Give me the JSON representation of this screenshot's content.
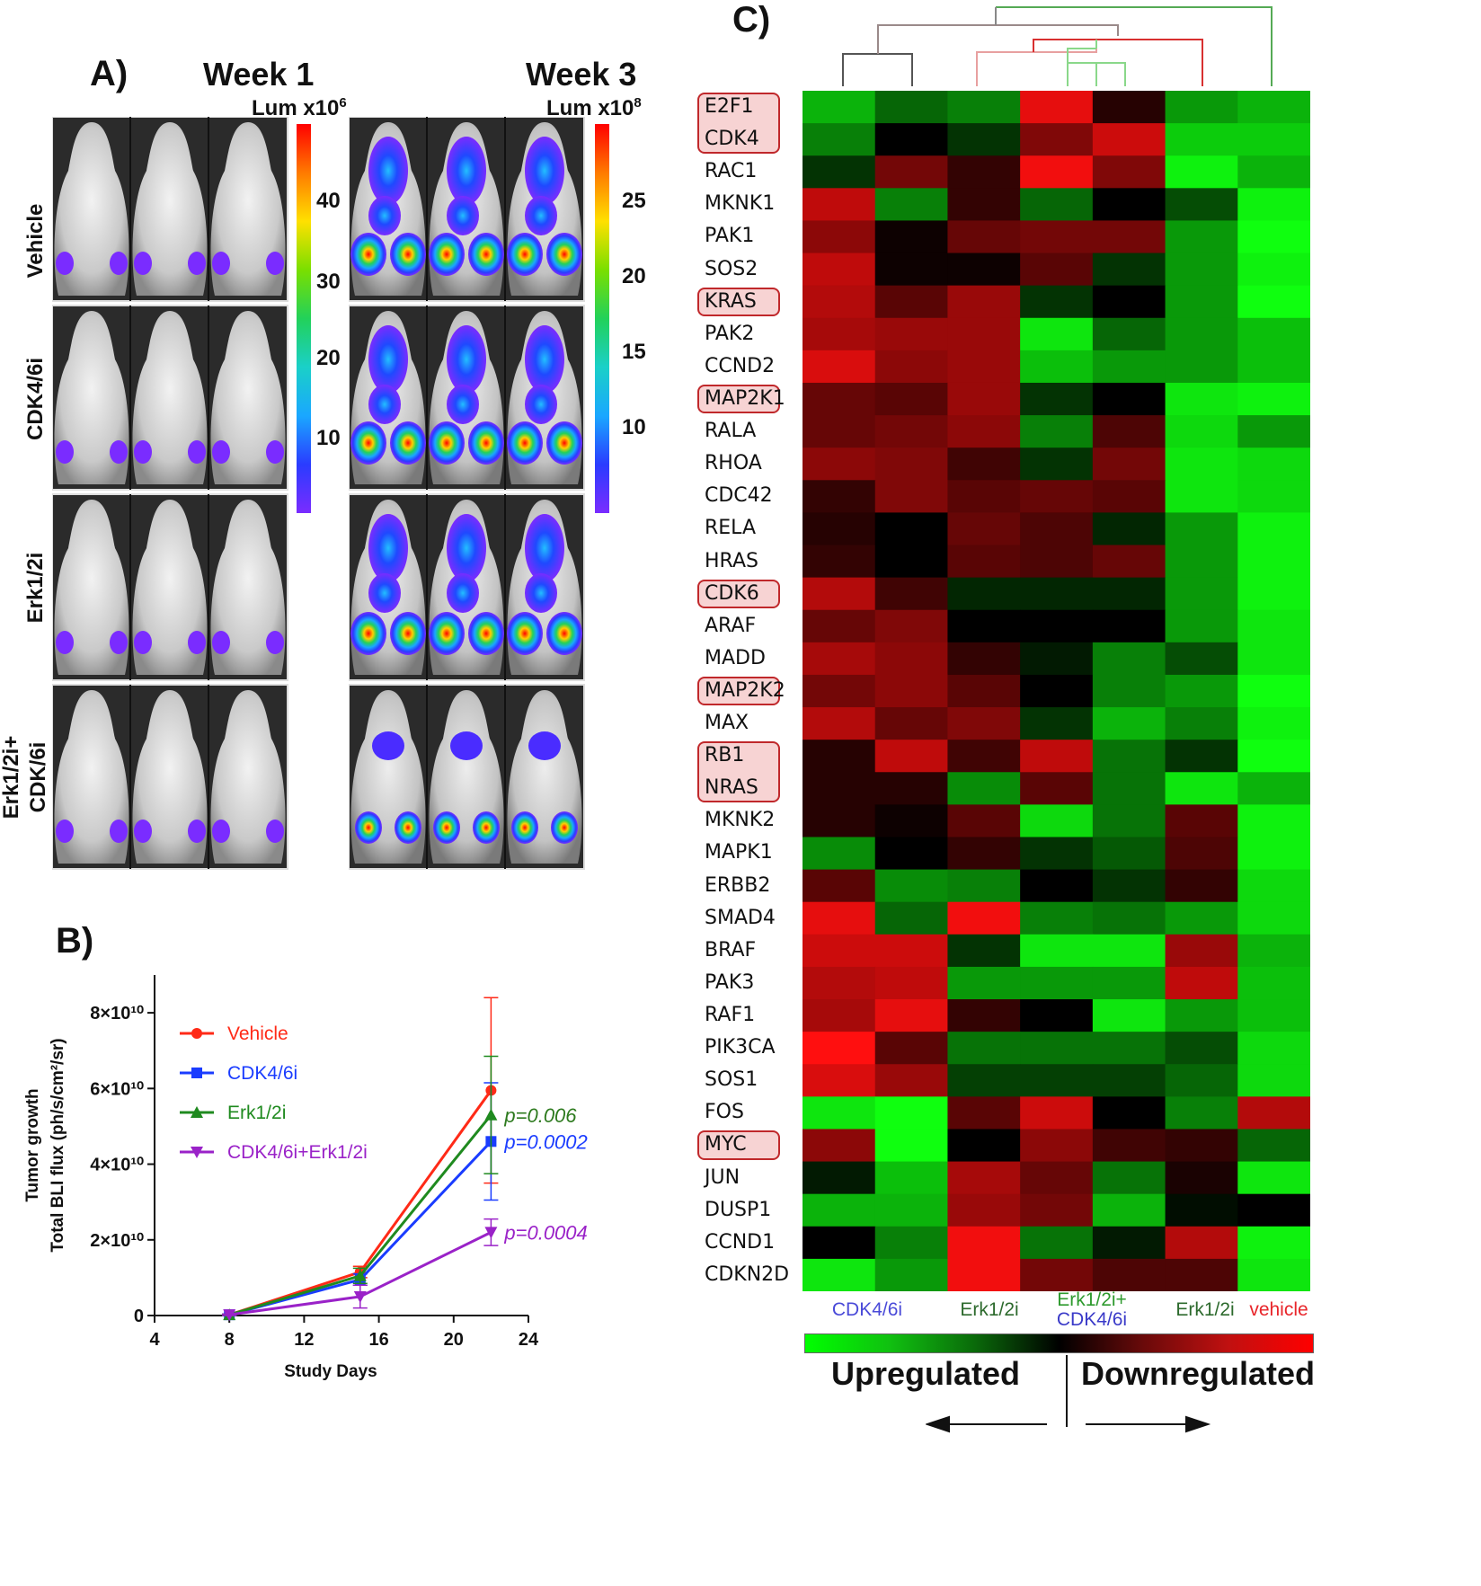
{
  "panelA": {
    "letter": "A)",
    "week1": "Week 1",
    "week3": "Week 3",
    "lum1_base": "Lum x10",
    "lum1_exp": "6",
    "lum3_base": "Lum x10",
    "lum3_exp": "8",
    "rows": [
      "Vehicle",
      "CDK4/6i",
      "Erk1/2i",
      "Erk1/2i+",
      "CDK/6i"
    ],
    "scale1_ticks": [
      "40",
      "30",
      "20",
      "10"
    ],
    "scale3_ticks": [
      "25",
      "20",
      "15",
      "10"
    ]
  },
  "panelB": {
    "letter": "B)",
    "chart_data": {
      "type": "line",
      "xlabel": "Study Days",
      "ylabel_line1": "Tumor growth",
      "ylabel_line2": "Total BLI flux (ph/s/cm²/sr)",
      "xlim": [
        4,
        24
      ],
      "ylim": [
        0,
        90000000000.0
      ],
      "x_ticks": [
        "4",
        "8",
        "12",
        "16",
        "20",
        "24"
      ],
      "y_ticks": [
        "0",
        "2×10¹⁰",
        "4×10¹⁰",
        "6×10¹⁰",
        "8×10¹⁰"
      ],
      "x": [
        8,
        15,
        22
      ],
      "series": [
        {
          "name": "Vehicle",
          "color": "#ff2a17",
          "marker": "circle",
          "values": [
            200000000.0,
            11500000000.0,
            59500000000.0
          ],
          "err": [
            200000000.0,
            1500000000.0,
            24500000000.0
          ]
        },
        {
          "name": "CDK4/6i",
          "color": "#1a3cff",
          "marker": "square",
          "values": [
            200000000.0,
            9500000000.0,
            46000000000.0
          ],
          "err": [
            200000000.0,
            1500000000.0,
            15500000000.0
          ]
        },
        {
          "name": "Erk1/2i",
          "color": "#1f8a1f",
          "marker": "triangle",
          "values": [
            200000000.0,
            10500000000.0,
            53000000000.0
          ],
          "err": [
            200000000.0,
            2000000000.0,
            15500000000.0
          ]
        },
        {
          "name": "CDK4/6i+Erk1/2i",
          "color": "#9a22c8",
          "marker": "triangle-down",
          "values": [
            200000000.0,
            5000000000.0,
            22000000000.0
          ],
          "err": [
            200000000.0,
            3000000000.0,
            3500000000.0
          ]
        }
      ],
      "annotations": [
        {
          "text": "p=0.006",
          "color": "#2d7a1e",
          "y": 53000000000.0
        },
        {
          "text": "p=0.0002",
          "color": "#1a3cff",
          "y": 46000000000.0
        },
        {
          "text": "p=0.0004",
          "color": "#9a22c8",
          "y": 22000000000.0
        }
      ]
    }
  },
  "panelC": {
    "letter": "C)",
    "genes": [
      "E2F1",
      "CDK4",
      "RAC1",
      "MKNK1",
      "PAK1",
      "SOS2",
      "KRAS",
      "PAK2",
      "CCND2",
      "MAP2K1",
      "RALA",
      "RHOA",
      "CDC42",
      "RELA",
      "HRAS",
      "CDK6",
      "ARAF",
      "MADD",
      "MAP2K2",
      "MAX",
      "RB1",
      "NRAS",
      "MKNK2",
      "MAPK1",
      "ERBB2",
      "SMAD4",
      "BRAF",
      "PAK3",
      "RAF1",
      "PIK3CA",
      "SOS1",
      "FOS",
      "MYC",
      "JUN",
      "DUSP1",
      "CCND1",
      "CDKN2D"
    ],
    "boxed_groups": [
      [
        0,
        1
      ],
      [
        6,
        6
      ],
      [
        9,
        9
      ],
      [
        15,
        15
      ],
      [
        18,
        18
      ],
      [
        20,
        21
      ],
      [
        32,
        32
      ]
    ],
    "chart_data": {
      "type": "heatmap",
      "scale": "-1 = bright green (upregulated), 0 = black, +1 = bright red (downregulated)",
      "values": [
        [
          -0.7,
          -0.4,
          -0.5,
          0.9,
          0.15,
          -0.6,
          -0.7
        ],
        [
          -0.5,
          0.0,
          -0.2,
          0.5,
          0.8,
          -0.8,
          -0.8
        ],
        [
          -0.2,
          0.45,
          0.2,
          0.95,
          0.5,
          -0.95,
          -0.7
        ],
        [
          0.75,
          -0.5,
          0.2,
          -0.4,
          0.0,
          -0.3,
          -0.95
        ],
        [
          0.55,
          0.05,
          0.4,
          0.45,
          0.45,
          -0.6,
          -1.0
        ],
        [
          0.75,
          0.05,
          0.05,
          0.35,
          -0.2,
          -0.6,
          -0.95
        ],
        [
          0.7,
          0.35,
          0.6,
          -0.2,
          0.0,
          -0.6,
          -1.0
        ],
        [
          0.65,
          0.6,
          0.6,
          -0.9,
          -0.4,
          -0.6,
          -0.75
        ],
        [
          0.85,
          0.55,
          0.6,
          -0.75,
          -0.6,
          -0.6,
          -0.75
        ],
        [
          0.4,
          0.35,
          0.6,
          -0.2,
          0.0,
          -0.9,
          -0.95
        ],
        [
          0.4,
          0.45,
          0.55,
          -0.5,
          0.3,
          -0.85,
          -0.6
        ],
        [
          0.55,
          0.5,
          0.25,
          -0.2,
          0.45,
          -0.9,
          -0.85
        ],
        [
          0.2,
          0.5,
          0.35,
          0.4,
          0.35,
          -0.9,
          -0.85
        ],
        [
          0.15,
          0.0,
          0.4,
          0.3,
          -0.15,
          -0.6,
          -0.95
        ],
        [
          0.2,
          0.0,
          0.35,
          0.3,
          0.4,
          -0.6,
          -0.95
        ],
        [
          0.7,
          0.25,
          -0.15,
          -0.15,
          -0.15,
          -0.6,
          -0.95
        ],
        [
          0.4,
          0.5,
          0.0,
          0.0,
          0.0,
          -0.6,
          -0.9
        ],
        [
          0.65,
          0.55,
          0.2,
          -0.1,
          -0.5,
          -0.3,
          -0.9
        ],
        [
          0.45,
          0.55,
          0.35,
          0.0,
          -0.5,
          -0.6,
          -1.0
        ],
        [
          0.7,
          0.4,
          0.5,
          -0.2,
          -0.7,
          -0.5,
          -0.95
        ],
        [
          0.15,
          0.75,
          0.25,
          0.75,
          -0.45,
          -0.2,
          -1.0
        ],
        [
          0.15,
          0.15,
          -0.55,
          0.35,
          -0.45,
          -0.9,
          -0.7
        ],
        [
          0.15,
          0.05,
          0.35,
          -0.85,
          -0.45,
          0.35,
          -0.95
        ],
        [
          -0.55,
          0.0,
          0.2,
          -0.2,
          -0.35,
          0.3,
          -0.95
        ],
        [
          0.35,
          -0.55,
          -0.5,
          0.0,
          -0.2,
          0.2,
          -0.85
        ],
        [
          0.9,
          -0.4,
          0.95,
          -0.5,
          -0.45,
          -0.6,
          -0.85
        ],
        [
          0.8,
          0.8,
          -0.2,
          -0.9,
          -0.9,
          0.6,
          -0.7
        ],
        [
          0.7,
          0.75,
          -0.6,
          -0.6,
          -0.6,
          0.75,
          -0.75
        ],
        [
          0.65,
          0.9,
          0.2,
          0.0,
          -0.9,
          -0.6,
          -0.75
        ],
        [
          1.0,
          0.35,
          -0.45,
          -0.45,
          -0.45,
          -0.3,
          -0.85
        ],
        [
          0.85,
          0.6,
          -0.25,
          -0.25,
          -0.25,
          -0.4,
          -0.85
        ],
        [
          -0.9,
          -1.0,
          0.35,
          0.8,
          0.0,
          -0.5,
          0.7
        ],
        [
          0.55,
          -1.0,
          0.0,
          0.55,
          0.25,
          0.2,
          -0.4
        ],
        [
          -0.1,
          -0.75,
          0.65,
          0.4,
          -0.45,
          0.1,
          -0.9
        ],
        [
          -0.7,
          -0.7,
          0.6,
          0.45,
          -0.7,
          -0.05,
          0.0
        ],
        [
          0.0,
          -0.5,
          0.95,
          -0.45,
          -0.1,
          0.7,
          -0.95
        ],
        [
          -0.9,
          -0.6,
          0.95,
          0.45,
          0.3,
          0.3,
          -0.9
        ]
      ]
    },
    "col_labels": [
      {
        "text": "CDK4/6i",
        "color": "#4a4ad8"
      },
      {
        "text": "Erk1/2i",
        "color": "#2d6a2d"
      },
      {
        "text": "Erk1/2i+",
        "color": "#2e9a2e"
      },
      {
        "text": "CDK4/6i",
        "color": "#3a3ac8"
      },
      {
        "text": "Erk1/2i",
        "color": "#2d6a2d"
      },
      {
        "text": "vehicle",
        "color": "#e8252a"
      }
    ],
    "upregulated": "Upregulated",
    "downregulated": "Downregulated"
  }
}
